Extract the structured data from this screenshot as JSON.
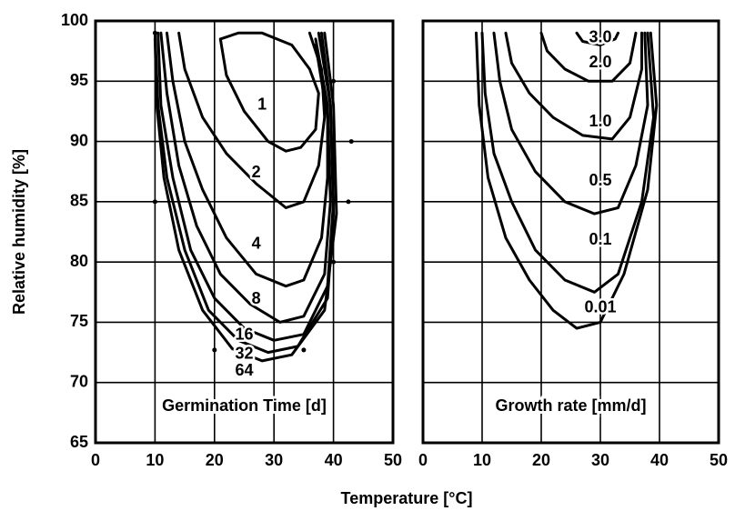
{
  "xlabel": "Temperature [°C]",
  "ylabel": "Relative humidity [%]",
  "chart_data": [
    {
      "type": "contour",
      "title": "Germination Time [d]",
      "xlim": [
        0,
        50
      ],
      "xticks": [
        0,
        10,
        20,
        30,
        40,
        50
      ],
      "ylim": [
        65,
        100
      ],
      "yticks": [
        65,
        70,
        75,
        80,
        85,
        90,
        95,
        100
      ],
      "ytick_labels": true,
      "grid": true,
      "series": [
        {
          "name": "1",
          "x": [
            21,
            24,
            28,
            33,
            36,
            37.5,
            37,
            34.5,
            32,
            29,
            25,
            22,
            21
          ],
          "y": [
            98.5,
            99,
            99,
            98,
            96,
            94,
            91,
            89.5,
            89.2,
            90,
            92.5,
            95.5,
            98.5
          ]
        },
        {
          "name": "2",
          "x": [
            14,
            15,
            18,
            22,
            27,
            32,
            35,
            37.5,
            38.5,
            38,
            36
          ],
          "y": [
            99,
            96,
            92,
            89,
            86.5,
            84.5,
            85,
            88,
            92,
            96,
            99
          ]
        },
        {
          "name": "4",
          "x": [
            12,
            13,
            15,
            18,
            22,
            27,
            32,
            35,
            38,
            39,
            39,
            37
          ],
          "y": [
            99,
            95,
            90,
            86,
            82,
            79,
            78,
            78.5,
            82,
            87,
            92,
            98
          ]
        },
        {
          "name": "8",
          "x": [
            11,
            12,
            14,
            17,
            21,
            26,
            31,
            35,
            38.5,
            39.5,
            39,
            37
          ],
          "y": [
            99,
            94,
            88,
            83,
            79,
            76.5,
            75,
            75.5,
            79,
            85,
            93,
            98.5
          ]
        },
        {
          "name": "16",
          "x": [
            10.5,
            11,
            13,
            16,
            20,
            25,
            30,
            35,
            39,
            40,
            39.5,
            37.5
          ],
          "y": [
            99,
            93,
            87,
            81,
            77,
            74.5,
            73.5,
            74,
            78,
            85,
            93,
            99
          ]
        },
        {
          "name": "32",
          "x": [
            10,
            10.5,
            12,
            15,
            19,
            24,
            29,
            34,
            39,
            40,
            39.5,
            38
          ],
          "y": [
            99,
            93,
            87,
            81,
            76,
            73.5,
            72.5,
            73,
            77,
            84,
            93,
            99
          ]
        },
        {
          "name": "64",
          "x": [
            10,
            10.3,
            11.5,
            14,
            18,
            23,
            28,
            33,
            38.5,
            40.5,
            40,
            38.5
          ],
          "y": [
            98.5,
            93,
            87,
            81,
            76,
            72.8,
            71.8,
            72.3,
            76,
            84,
            93,
            99
          ]
        }
      ],
      "points": {
        "x": [
          10,
          10,
          20,
          35,
          40,
          42.5,
          43,
          40
        ],
        "y": [
          99,
          85,
          72.7,
          72.7,
          80,
          85,
          90,
          95
        ]
      }
    },
    {
      "type": "contour",
      "title": "Growth rate [mm/d]",
      "xlim": [
        0,
        50
      ],
      "xticks": [
        0,
        10,
        20,
        30,
        40,
        50
      ],
      "ylim": [
        65,
        100
      ],
      "yticks": [
        65,
        70,
        75,
        80,
        85,
        90,
        95,
        100
      ],
      "ytick_labels": false,
      "grid": true,
      "series": [
        {
          "name": "3.0",
          "x": [
            26,
            27,
            30,
            32.5,
            33
          ],
          "y": [
            99,
            98.3,
            98,
            98.5,
            99
          ]
        },
        {
          "name": "2.0",
          "x": [
            20,
            21,
            24,
            28,
            32,
            35,
            36
          ],
          "y": [
            99,
            97.5,
            96,
            95,
            95,
            96.5,
            99
          ]
        },
        {
          "name": "1.0",
          "x": [
            14,
            15,
            18,
            22,
            27,
            32,
            35,
            37,
            37
          ],
          "y": [
            99,
            96.5,
            94,
            92,
            90.5,
            90.2,
            92,
            96,
            99
          ]
        },
        {
          "name": "0.5",
          "x": [
            12,
            13,
            15,
            19,
            24,
            29,
            33,
            36,
            38,
            37.5
          ],
          "y": [
            99,
            95,
            91,
            87.5,
            85,
            84,
            84.5,
            88,
            93,
            99
          ]
        },
        {
          "name": "0.1",
          "x": [
            10,
            10.5,
            12,
            15,
            19,
            24,
            29,
            33,
            37,
            39,
            38
          ],
          "y": [
            99,
            94,
            89,
            85,
            81,
            78.5,
            77.5,
            79,
            85,
            92,
            99
          ]
        },
        {
          "name": "0.01",
          "x": [
            9,
            9.5,
            11,
            14,
            18,
            22,
            26,
            30,
            34,
            38,
            39.5,
            38.5
          ],
          "y": [
            99,
            93,
            87,
            82,
            78.5,
            76,
            74.5,
            75,
            79,
            86,
            93,
            99
          ]
        }
      ]
    }
  ]
}
